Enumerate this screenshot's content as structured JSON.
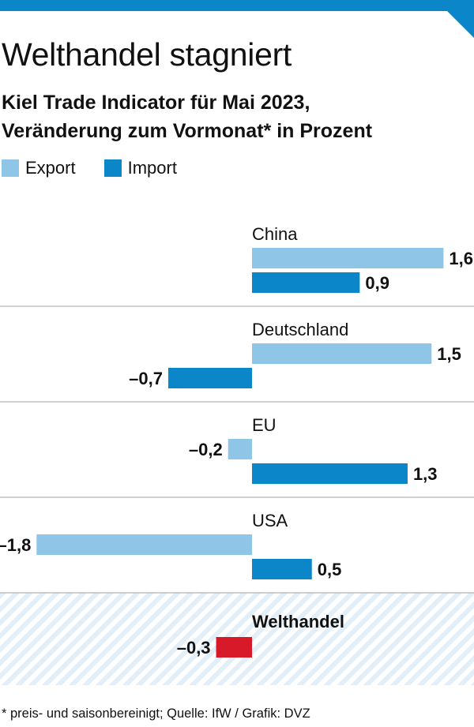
{
  "title": "Welthandel stagniert",
  "subtitle_line1": "Kiel Trade Indicator für Mai 2023,",
  "subtitle_line2": "Veränderung zum Vormonat* in Prozent",
  "legend": [
    {
      "label": "Export",
      "color": "#8fc6e8"
    },
    {
      "label": "Import",
      "color": "#0a86c9"
    }
  ],
  "footnote": "* preis- und saisonbereinigt; Quelle: IfW / Grafik: DVZ",
  "colors": {
    "export": "#8fc6e8",
    "import": "#0a86c9",
    "welthandel": "#d7192a",
    "accent": "#0a86c9",
    "divider": "#b5b5b5"
  },
  "chart_data": {
    "type": "bar",
    "orientation": "horizontal",
    "title": "Welthandel stagniert",
    "subtitle": "Kiel Trade Indicator für Mai 2023, Veränderung zum Vormonat* in Prozent",
    "categories": [
      "China",
      "Deutschland",
      "EU",
      "USA"
    ],
    "series": [
      {
        "name": "Export",
        "values": [
          1.6,
          1.5,
          -0.2,
          -1.8
        ]
      },
      {
        "name": "Import",
        "values": [
          0.9,
          -0.7,
          1.3,
          0.5
        ]
      }
    ],
    "value_labels": {
      "Export": [
        "1,6",
        "1,5",
        "–0,2",
        "–1,8"
      ],
      "Import": [
        "0,9",
        "–0,7",
        "1,3",
        "0,5"
      ]
    },
    "total": {
      "label": "Welthandel",
      "value": -0.3,
      "value_label": "–0,3"
    },
    "legend_position": "top-left",
    "grid": false
  }
}
